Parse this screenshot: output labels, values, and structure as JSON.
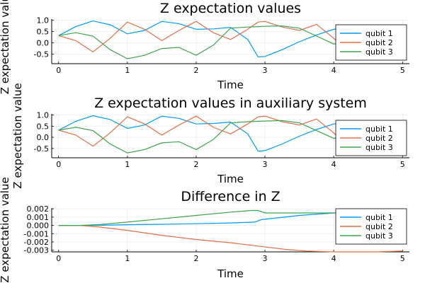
{
  "chart_data": [
    {
      "type": "line",
      "title": "Z expectation values",
      "xlabel": "Time",
      "ylabel": "Z expectation value",
      "xlim": [
        -0.1,
        5.1
      ],
      "ylim": [
        -0.92,
        1.05
      ],
      "xticks": [
        0,
        1,
        2,
        3,
        4,
        5
      ],
      "xtick_labels": [
        "0",
        "1",
        "2",
        "3",
        "4",
        "5"
      ],
      "yticks": [
        1.0,
        0.5,
        0.0,
        -0.5
      ],
      "ytick_labels": [
        "1.0",
        "0.5",
        "0.0",
        "-0.5"
      ],
      "grid": true,
      "legend": "right",
      "series": [
        {
          "name": "qubit 1",
          "color": "#009af9",
          "x": [
            0,
            0.25,
            0.5,
            0.75,
            1.0,
            1.25,
            1.5,
            1.75,
            2.0,
            2.25,
            2.5,
            2.75,
            2.9,
            3.0,
            3.25,
            3.5,
            3.75,
            4.0,
            4.25,
            4.5,
            4.75,
            5.0
          ],
          "y": [
            0.32,
            0.72,
            0.97,
            0.8,
            0.4,
            0.55,
            0.95,
            0.85,
            0.6,
            0.62,
            0.68,
            0.15,
            -0.62,
            -0.6,
            -0.3,
            0.05,
            0.35,
            0.6,
            0.68,
            0.55,
            0.42,
            0.3
          ]
        },
        {
          "name": "qubit 2",
          "color": "#e26f46",
          "x": [
            0,
            0.25,
            0.5,
            0.75,
            1.0,
            1.25,
            1.5,
            1.75,
            2.0,
            2.25,
            2.5,
            2.75,
            2.9,
            3.0,
            3.25,
            3.5,
            3.75,
            4.0,
            4.25,
            4.5,
            4.75,
            5.0
          ],
          "y": [
            0.32,
            0.1,
            -0.4,
            0.2,
            0.92,
            0.6,
            0.1,
            0.55,
            0.95,
            0.45,
            0.15,
            0.6,
            0.92,
            0.95,
            0.7,
            0.55,
            0.82,
            0.2,
            -0.62,
            -0.6,
            -0.2,
            0.15
          ]
        },
        {
          "name": "qubit 3",
          "color": "#3ea44e",
          "x": [
            0,
            0.25,
            0.5,
            0.75,
            1.0,
            1.25,
            1.5,
            1.75,
            2.0,
            2.25,
            2.5,
            2.75,
            2.9,
            3.0,
            3.25,
            3.5,
            3.75,
            4.0,
            4.25,
            4.5,
            4.75,
            5.0
          ],
          "y": [
            0.32,
            0.45,
            0.3,
            -0.3,
            -0.7,
            -0.55,
            -0.25,
            -0.2,
            -0.55,
            -0.1,
            0.65,
            0.7,
            0.72,
            0.73,
            0.75,
            0.65,
            0.3,
            -0.05,
            0.1,
            0.4,
            0.5,
            0.45
          ]
        }
      ]
    },
    {
      "type": "line",
      "title": "Z expectation values in auxiliary system",
      "xlabel": "Time",
      "ylabel": "Z expectation value",
      "xlim": [
        -0.1,
        5.1
      ],
      "ylim": [
        -0.92,
        1.05
      ],
      "xticks": [
        0,
        1,
        2,
        3,
        4,
        5
      ],
      "xtick_labels": [
        "0",
        "1",
        "2",
        "3",
        "4",
        "5"
      ],
      "yticks": [
        1.0,
        0.5,
        0.0,
        -0.5
      ],
      "ytick_labels": [
        "1.0",
        "0.5",
        "0.0",
        "-0.5"
      ],
      "grid": true,
      "legend": "right",
      "series": [
        {
          "name": "qubit 1",
          "color": "#009af9",
          "x": [
            0,
            0.25,
            0.5,
            0.75,
            1.0,
            1.25,
            1.5,
            1.75,
            2.0,
            2.25,
            2.5,
            2.75,
            2.9,
            3.0,
            3.25,
            3.5,
            3.75,
            4.0,
            4.25,
            4.5,
            4.75,
            5.0
          ],
          "y": [
            0.32,
            0.72,
            0.97,
            0.8,
            0.4,
            0.55,
            0.95,
            0.85,
            0.6,
            0.62,
            0.68,
            0.15,
            -0.62,
            -0.6,
            -0.3,
            0.05,
            0.35,
            0.6,
            0.68,
            0.55,
            0.42,
            0.3
          ]
        },
        {
          "name": "qubit 2",
          "color": "#e26f46",
          "x": [
            0,
            0.25,
            0.5,
            0.75,
            1.0,
            1.25,
            1.5,
            1.75,
            2.0,
            2.25,
            2.5,
            2.75,
            2.9,
            3.0,
            3.25,
            3.5,
            3.75,
            4.0,
            4.25,
            4.5,
            4.75,
            5.0
          ],
          "y": [
            0.32,
            0.1,
            -0.4,
            0.2,
            0.92,
            0.6,
            0.1,
            0.55,
            0.95,
            0.45,
            0.15,
            0.6,
            0.92,
            0.95,
            0.7,
            0.55,
            0.82,
            0.2,
            -0.62,
            -0.6,
            -0.2,
            0.15
          ]
        },
        {
          "name": "qubit 3",
          "color": "#3ea44e",
          "x": [
            0,
            0.25,
            0.5,
            0.75,
            1.0,
            1.25,
            1.5,
            1.75,
            2.0,
            2.25,
            2.5,
            2.75,
            2.9,
            3.0,
            3.25,
            3.5,
            3.75,
            4.0,
            4.25,
            4.5,
            4.75,
            5.0
          ],
          "y": [
            0.32,
            0.45,
            0.3,
            -0.3,
            -0.7,
            -0.55,
            -0.25,
            -0.2,
            -0.55,
            -0.1,
            0.65,
            0.7,
            0.72,
            0.73,
            0.75,
            0.65,
            0.3,
            -0.05,
            0.1,
            0.4,
            0.5,
            0.45
          ]
        }
      ]
    },
    {
      "type": "line",
      "title": "Difference in Z",
      "xlabel": "Time",
      "ylabel": "Z expectation value",
      "xlim": [
        -0.1,
        5.1
      ],
      "ylim": [
        -0.0032,
        0.0021
      ],
      "xticks": [
        0,
        1,
        2,
        3,
        4,
        5
      ],
      "xtick_labels": [
        "0",
        "1",
        "2",
        "3",
        "4",
        "5"
      ],
      "yticks": [
        0.002,
        0.001,
        0.0,
        -0.001,
        -0.002,
        -0.003
      ],
      "ytick_labels": [
        "0.002",
        "0.001",
        "0.000",
        "-0.001",
        "-0.002",
        "-0.003"
      ],
      "grid": true,
      "legend": "right",
      "series": [
        {
          "name": "qubit 1",
          "color": "#009af9",
          "x": [
            0,
            0.5,
            1.0,
            1.5,
            2.0,
            2.5,
            2.85,
            2.95,
            3.5,
            4.0,
            4.5,
            5.0
          ],
          "y": [
            0.0,
            0.0,
            8e-05,
            0.00013,
            0.0002,
            0.0003,
            0.0004,
            0.0007,
            0.0012,
            0.0015,
            0.0016,
            0.0016
          ]
        },
        {
          "name": "qubit 2",
          "color": "#e26f46",
          "x": [
            0,
            0.3,
            0.6,
            1.0,
            1.5,
            2.0,
            2.5,
            2.9,
            3.3,
            3.6,
            4.0,
            4.3,
            4.6,
            5.0
          ],
          "y": [
            0.0,
            0.0,
            -0.0002,
            -0.0006,
            -0.0012,
            -0.0017,
            -0.0021,
            -0.0025,
            -0.0029,
            -0.0031,
            -0.0032,
            -0.0032,
            -0.0032,
            -0.0031
          ]
        },
        {
          "name": "qubit 3",
          "color": "#3ea44e",
          "x": [
            0,
            0.3,
            0.6,
            1.0,
            1.5,
            2.0,
            2.5,
            2.8,
            2.9,
            3.0,
            3.5,
            4.0,
            4.5,
            5.0
          ],
          "y": [
            0.0,
            0.0,
            0.0001,
            0.0004,
            0.0008,
            0.0012,
            0.0016,
            0.0018,
            0.0018,
            0.0015,
            0.0015,
            0.0015,
            0.0014,
            0.0014
          ]
        }
      ]
    }
  ]
}
